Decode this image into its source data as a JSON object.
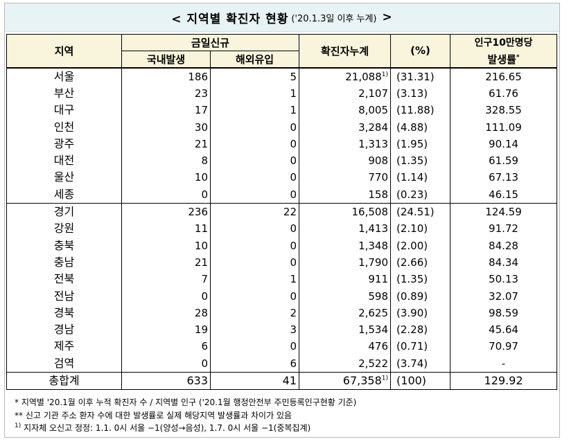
{
  "title": {
    "main": "< 지역별 확진자 현황",
    "sub": "('20.1.3일 이후 누계)",
    "close": ">"
  },
  "headers": {
    "region": "지역",
    "new_group": "금일신규",
    "domestic": "국내발생",
    "imported": "해외유입",
    "cumulative": "확진자누계",
    "percent": "(%)",
    "rate_line1": "인구10만명당",
    "rate_line2": "발생률",
    "rate_mark": "*"
  },
  "rows": [
    {
      "region": "서울",
      "domestic": "186",
      "imported": "5",
      "cumulative": "21,088",
      "mark": "1)",
      "percent": "(31.31)",
      "rate": "216.65"
    },
    {
      "region": "부산",
      "domestic": "23",
      "imported": "1",
      "cumulative": "2,107",
      "mark": "",
      "percent": "(3.13)",
      "rate": "61.76"
    },
    {
      "region": "대구",
      "domestic": "17",
      "imported": "1",
      "cumulative": "8,005",
      "mark": "",
      "percent": "(11.88)",
      "rate": "328.55"
    },
    {
      "region": "인천",
      "domestic": "30",
      "imported": "0",
      "cumulative": "3,284",
      "mark": "",
      "percent": "(4.88)",
      "rate": "111.09"
    },
    {
      "region": "광주",
      "domestic": "21",
      "imported": "0",
      "cumulative": "1,313",
      "mark": "",
      "percent": "(1.95)",
      "rate": "90.14"
    },
    {
      "region": "대전",
      "domestic": "8",
      "imported": "0",
      "cumulative": "908",
      "mark": "",
      "percent": "(1.35)",
      "rate": "61.59"
    },
    {
      "region": "울산",
      "domestic": "10",
      "imported": "0",
      "cumulative": "770",
      "mark": "",
      "percent": "(1.14)",
      "rate": "67.13"
    },
    {
      "region": "세종",
      "domestic": "0",
      "imported": "0",
      "cumulative": "158",
      "mark": "",
      "percent": "(0.23)",
      "rate": "46.15"
    },
    {
      "region": "경기",
      "domestic": "236",
      "imported": "22",
      "cumulative": "16,508",
      "mark": "",
      "percent": "(24.51)",
      "rate": "124.59"
    },
    {
      "region": "강원",
      "domestic": "11",
      "imported": "0",
      "cumulative": "1,413",
      "mark": "",
      "percent": "(2.10)",
      "rate": "91.72"
    },
    {
      "region": "충북",
      "domestic": "10",
      "imported": "0",
      "cumulative": "1,348",
      "mark": "",
      "percent": "(2.00)",
      "rate": "84.28"
    },
    {
      "region": "충남",
      "domestic": "21",
      "imported": "0",
      "cumulative": "1,790",
      "mark": "",
      "percent": "(2.66)",
      "rate": "84.34"
    },
    {
      "region": "전북",
      "domestic": "7",
      "imported": "1",
      "cumulative": "911",
      "mark": "",
      "percent": "(1.35)",
      "rate": "50.13"
    },
    {
      "region": "전남",
      "domestic": "0",
      "imported": "0",
      "cumulative": "598",
      "mark": "",
      "percent": "(0.89)",
      "rate": "32.07"
    },
    {
      "region": "경북",
      "domestic": "28",
      "imported": "2",
      "cumulative": "2,625",
      "mark": "",
      "percent": "(3.90)",
      "rate": "98.59"
    },
    {
      "region": "경남",
      "domestic": "19",
      "imported": "3",
      "cumulative": "1,534",
      "mark": "",
      "percent": "(2.28)",
      "rate": "45.64"
    },
    {
      "region": "제주",
      "domestic": "6",
      "imported": "0",
      "cumulative": "476",
      "mark": "",
      "percent": "(0.71)",
      "rate": "70.97"
    },
    {
      "region": "검역",
      "domestic": "0",
      "imported": "6",
      "cumulative": "2,522",
      "mark": "",
      "percent": "(3.74)",
      "rate": "-"
    }
  ],
  "total": {
    "region": "총합계",
    "domestic": "633",
    "imported": "41",
    "cumulative": "67,358",
    "mark": "1)",
    "percent": "(100)",
    "rate": "129.92"
  },
  "notes": [
    {
      "mark": "*",
      "text": "지역별 '20.1월 이후 누적 확진자 수 / 지역별 인구 ('20.1월 행정안전부 주민등록인구현황 기준)"
    },
    {
      "mark": "**",
      "text": "신고 기관 주소 환자 수에 대한 발생률로 실제 해당지역 발생률과 차이가 있음"
    },
    {
      "mark": "1)",
      "text": "지자체 오신고 정정: 1.1. 0시 서울 −1(양성→음성), 1.7. 0시 서울 −1(중복집계)"
    }
  ],
  "colors": {
    "title_bg": "#e8f3f6",
    "header_bg": "#f8f5dc"
  }
}
